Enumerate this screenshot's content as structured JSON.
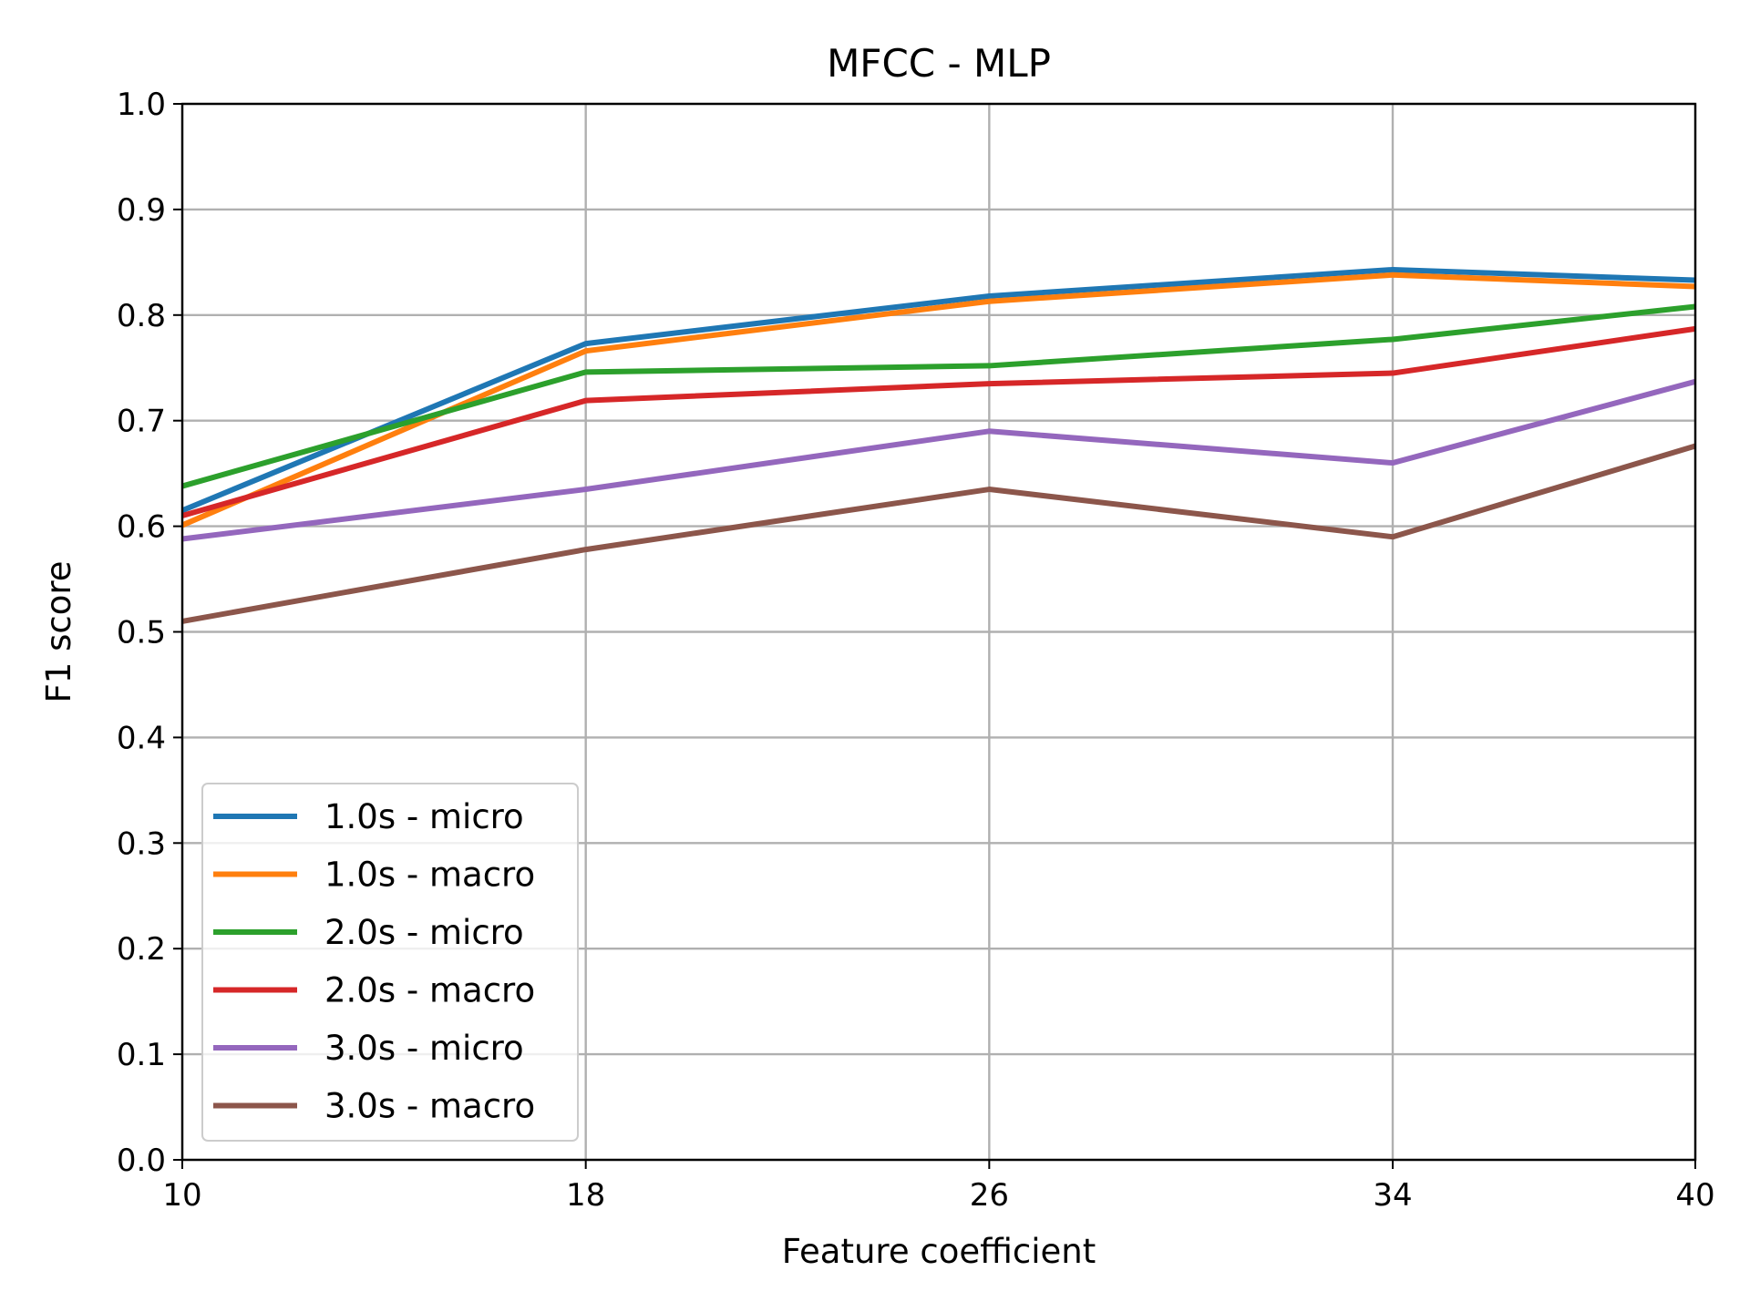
{
  "chart_data": {
    "type": "line",
    "title": "MFCC - MLP",
    "xlabel": "Feature coefficient",
    "ylabel": "F1 score",
    "x": [
      10,
      18,
      26,
      34,
      40
    ],
    "xticks": [
      "10",
      "18",
      "26",
      "34",
      "40"
    ],
    "xlim": [
      10,
      40
    ],
    "ylim": [
      0.0,
      1.0
    ],
    "yticks": [
      "0.0",
      "0.1",
      "0.2",
      "0.3",
      "0.4",
      "0.5",
      "0.6",
      "0.7",
      "0.8",
      "0.9",
      "1.0"
    ],
    "grid": true,
    "legend_position": "lower-left",
    "series": [
      {
        "name": "1.0s - micro",
        "color": "#1f77b4",
        "values": [
          0.615,
          0.773,
          0.818,
          0.843,
          0.833
        ]
      },
      {
        "name": "1.0s - macro",
        "color": "#ff7f0e",
        "values": [
          0.601,
          0.766,
          0.813,
          0.838,
          0.827
        ]
      },
      {
        "name": "2.0s - micro",
        "color": "#2ca02c",
        "values": [
          0.638,
          0.746,
          0.752,
          0.777,
          0.808
        ]
      },
      {
        "name": "2.0s - macro",
        "color": "#d62728",
        "values": [
          0.61,
          0.719,
          0.735,
          0.745,
          0.787
        ]
      },
      {
        "name": "3.0s - micro",
        "color": "#9467bd",
        "values": [
          0.588,
          0.635,
          0.69,
          0.66,
          0.737
        ]
      },
      {
        "name": "3.0s - macro",
        "color": "#8c564b",
        "values": [
          0.51,
          0.578,
          0.635,
          0.59,
          0.676
        ]
      }
    ]
  }
}
